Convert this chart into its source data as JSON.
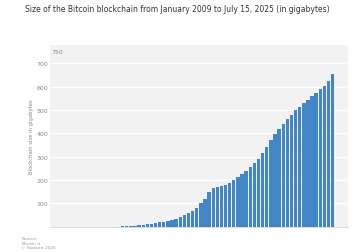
{
  "title": "Size of the Bitcoin blockchain from January 2009 to July 15, 2025 (in gigabytes)",
  "ylabel": "Blockchain size in gigabytes",
  "bar_color": "#4285c8",
  "fig_background": "#ffffff",
  "plot_background": "#f2f2f2",
  "ylim": [
    0,
    780
  ],
  "yticks": [
    100,
    200,
    300,
    400,
    500,
    600,
    700
  ],
  "ytick_top": 750,
  "source_text": "Source:\nBitcoin.it\n© Statista 2025",
  "values": [
    0.0001,
    0.0001,
    0.0001,
    0.0001,
    0.0001,
    0.0001,
    0.0001,
    0.01,
    0.03,
    0.08,
    0.15,
    0.3,
    0.5,
    0.8,
    1.2,
    1.8,
    2.5,
    3.8,
    5.5,
    8.0,
    10.0,
    13.0,
    16.0,
    18.5,
    21.0,
    25.0,
    30.0,
    35.0,
    40.0,
    48.0,
    57.0,
    67.0,
    80.0,
    100.0,
    120.0,
    148.0,
    165.0,
    172.0,
    176.0,
    180.0,
    188.0,
    200.0,
    212.0,
    225.0,
    240.0,
    255.0,
    272.0,
    292.0,
    315.0,
    342.0,
    370.0,
    395.0,
    418.0,
    440.0,
    460.0,
    478.0,
    498.0,
    514.0,
    528.0,
    543.0,
    558.0,
    572.0,
    588.0,
    603.0,
    622.0,
    652.0
  ]
}
